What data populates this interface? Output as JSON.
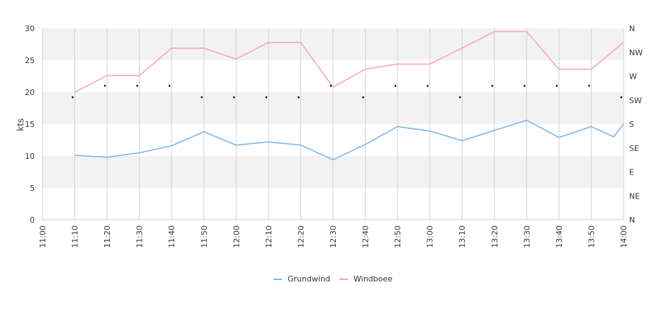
{
  "chart_data": {
    "type": "line",
    "x": [
      "11:00",
      "11:10",
      "11:20",
      "11:30",
      "11:40",
      "11:50",
      "12:00",
      "12:10",
      "12:20",
      "12:30",
      "12:40",
      "12:50",
      "13:00",
      "13:10",
      "13:20",
      "13:30",
      "13:40",
      "13:50",
      "14:00"
    ],
    "ylabel": "kts",
    "ylim": [
      0,
      30
    ],
    "yticks": [
      "0",
      "5",
      "10",
      "15",
      "20",
      "25",
      "30"
    ],
    "y2ticks": [
      "N",
      "NE",
      "E",
      "SE",
      "S",
      "SW",
      "W",
      "NW",
      "N"
    ],
    "grid": true,
    "legend_position": "bottom",
    "series": [
      {
        "name": "Grundwind",
        "color": "#7cb5ec",
        "points": [
          [
            "11:10",
            10.1
          ],
          [
            "11:20",
            9.8
          ],
          [
            "11:30",
            10.5
          ],
          [
            "11:40",
            11.6
          ],
          [
            "11:50",
            13.8
          ],
          [
            "12:00",
            11.7
          ],
          [
            "12:10",
            12.2
          ],
          [
            "12:20",
            11.7
          ],
          [
            "12:30",
            9.4
          ],
          [
            "12:40",
            11.8
          ],
          [
            "12:50",
            14.6
          ],
          [
            "13:00",
            13.9
          ],
          [
            "13:10",
            12.4
          ],
          [
            "13:20",
            14.0
          ],
          [
            "13:30",
            15.6
          ],
          [
            "13:40",
            12.9
          ],
          [
            "13:50",
            14.6
          ],
          [
            "13:57",
            13.0
          ],
          [
            "14:00",
            15.0
          ]
        ]
      },
      {
        "name": "Windboee",
        "color": "#f7a1c4",
        "points": [
          [
            "11:10",
            20.0
          ],
          [
            "11:20",
            22.6
          ],
          [
            "11:30",
            22.6
          ],
          [
            "11:40",
            26.9
          ],
          [
            "11:50",
            26.9
          ],
          [
            "12:00",
            25.2
          ],
          [
            "12:10",
            27.8
          ],
          [
            "12:20",
            27.8
          ],
          [
            "12:30",
            20.8
          ],
          [
            "12:40",
            23.6
          ],
          [
            "12:50",
            24.4
          ],
          [
            "13:00",
            24.4
          ],
          [
            "13:10",
            26.9
          ],
          [
            "13:20",
            29.5
          ],
          [
            "13:30",
            29.5
          ],
          [
            "13:40",
            23.6
          ],
          [
            "13:50",
            23.6
          ],
          [
            "14:00",
            27.8
          ]
        ]
      }
    ],
    "direction_points": [
      [
        "11:10",
        19.2
      ],
      [
        "11:20",
        21.0
      ],
      [
        "11:30",
        21.0
      ],
      [
        "11:40",
        21.0
      ],
      [
        "11:50",
        19.2
      ],
      [
        "12:00",
        19.2
      ],
      [
        "12:10",
        19.2
      ],
      [
        "12:20",
        19.2
      ],
      [
        "12:30",
        21.0
      ],
      [
        "12:40",
        19.2
      ],
      [
        "12:50",
        21.0
      ],
      [
        "13:00",
        21.0
      ],
      [
        "13:10",
        19.2
      ],
      [
        "13:20",
        21.0
      ],
      [
        "13:30",
        21.0
      ],
      [
        "13:40",
        21.0
      ],
      [
        "13:50",
        21.0
      ],
      [
        "14:00",
        19.2
      ]
    ]
  }
}
